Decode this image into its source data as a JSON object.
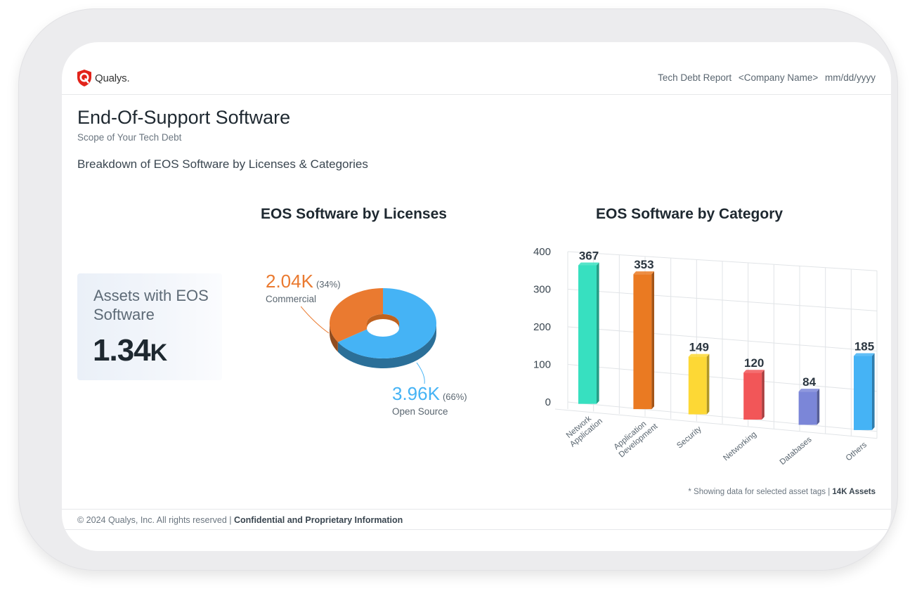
{
  "header": {
    "logo_text": "Qualys.",
    "report_title": "Tech Debt Report",
    "company": "<Company Name>",
    "date": "mm/dd/yyyy"
  },
  "page": {
    "title": "End-Of-Support Software",
    "subtitle": "Scope of Your Tech Debt",
    "section_title": "Breakdown of EOS Software by Licenses & Categories"
  },
  "assets_card": {
    "label": "Assets with EOS Software",
    "value": "1.34",
    "unit": "K"
  },
  "colors": {
    "commercial": "#ea7a30",
    "open_source": "#45b3f5",
    "network_application": "#37e0c0",
    "application_development": "#ea7a22",
    "security": "#fdd835",
    "networking": "#f25658",
    "databases": "#7b86d8",
    "others": "#45b3f5"
  },
  "chart_data": [
    {
      "type": "pie",
      "title": "EOS Software by Licenses",
      "slices": [
        {
          "name": "Commercial",
          "label": "2.04K",
          "value": 2040,
          "percent": "(34%)",
          "share": 34
        },
        {
          "name": "Open Source",
          "label": "3.96K",
          "value": 3960,
          "percent": "(66%)",
          "share": 66
        }
      ]
    },
    {
      "type": "bar",
      "title": "EOS Software by Category",
      "categories": [
        "Network Application",
        "Application Development",
        "Security",
        "Networking",
        "Databases",
        "Others"
      ],
      "values": [
        367,
        353,
        149,
        120,
        84,
        185
      ],
      "yticks": [
        "0",
        "100",
        "200",
        "300",
        "400"
      ],
      "ylim": [
        0,
        400
      ],
      "grid": true
    }
  ],
  "footnote": {
    "text": "* Showing data for selected asset tags |",
    "strong": "14K Assets"
  },
  "footer": {
    "text": "© 2024 Qualys, Inc. All rights reserved |",
    "strong": "Confidential and Proprietary Information"
  }
}
